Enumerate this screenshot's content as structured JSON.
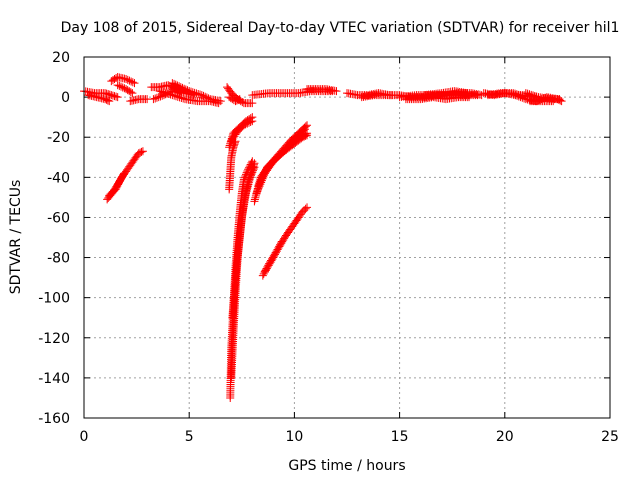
{
  "chart_data": {
    "type": "scatter",
    "title": "Day 108 of 2015, Sidereal Day-to-day VTEC variation (SDTVAR) for receiver hil1",
    "xlabel": "GPS time / hours",
    "ylabel": "SDTVAR / TECUs",
    "xlim": [
      0,
      25
    ],
    "ylim": [
      -160,
      20
    ],
    "xticks": [
      0,
      5,
      10,
      15,
      20,
      25
    ],
    "yticks": [
      20,
      0,
      -20,
      -40,
      -60,
      -80,
      -100,
      -120,
      -140,
      -160
    ],
    "grid": true,
    "grid_style": "dotted",
    "marker": "+",
    "marker_color": "#ff0000",
    "segments": [
      [
        [
          0.0,
          3
        ],
        [
          0.5,
          2
        ],
        [
          1.0,
          2
        ],
        [
          1.3,
          1
        ],
        [
          1.6,
          0
        ]
      ],
      [
        [
          0.2,
          1
        ],
        [
          0.6,
          0
        ],
        [
          1.0,
          -1
        ],
        [
          1.2,
          -2
        ]
      ],
      [
        [
          1.3,
          8
        ],
        [
          1.6,
          10
        ],
        [
          2.0,
          9
        ],
        [
          2.4,
          7
        ]
      ],
      [
        [
          1.6,
          6
        ],
        [
          2.0,
          4
        ],
        [
          2.3,
          2
        ]
      ],
      [
        [
          2.2,
          -2
        ],
        [
          2.6,
          -1
        ],
        [
          3.0,
          -1
        ]
      ],
      [
        [
          3.2,
          5
        ],
        [
          3.6,
          5
        ],
        [
          4.0,
          6
        ],
        [
          4.4,
          4
        ],
        [
          4.8,
          2
        ],
        [
          5.2,
          1
        ]
      ],
      [
        [
          3.3,
          -1
        ],
        [
          3.8,
          1
        ],
        [
          4.2,
          3
        ],
        [
          4.6,
          2
        ]
      ],
      [
        [
          3.6,
          3
        ],
        [
          4.2,
          1
        ],
        [
          4.8,
          -1
        ],
        [
          5.4,
          -2
        ],
        [
          6.0,
          -2
        ],
        [
          6.4,
          -3
        ]
      ],
      [
        [
          4.2,
          7
        ],
        [
          4.6,
          5
        ],
        [
          5.0,
          3
        ],
        [
          5.6,
          1
        ],
        [
          6.0,
          -1
        ],
        [
          6.5,
          -2
        ]
      ],
      [
        [
          6.8,
          5
        ],
        [
          7.0,
          2
        ],
        [
          7.3,
          -1
        ],
        [
          7.6,
          -3
        ],
        [
          8.0,
          -3
        ]
      ],
      [
        [
          6.9,
          0
        ],
        [
          7.2,
          -2
        ],
        [
          7.4,
          -1
        ]
      ],
      [
        [
          1.1,
          -51
        ],
        [
          1.4,
          -47
        ],
        [
          1.8,
          -40
        ],
        [
          2.2,
          -34
        ],
        [
          2.6,
          -28
        ],
        [
          2.8,
          -27
        ]
      ],
      [
        [
          1.2,
          -49
        ],
        [
          1.5,
          -46
        ],
        [
          1.9,
          -38
        ]
      ],
      [
        [
          6.9,
          -25
        ],
        [
          7.1,
          -18
        ],
        [
          7.4,
          -15
        ],
        [
          7.7,
          -12
        ],
        [
          8.0,
          -10
        ]
      ],
      [
        [
          7.0,
          -22
        ],
        [
          7.3,
          -17
        ],
        [
          7.6,
          -14
        ],
        [
          8.0,
          -12
        ]
      ],
      [
        [
          6.9,
          -46
        ],
        [
          6.95,
          -38
        ],
        [
          7.0,
          -30
        ],
        [
          7.1,
          -25
        ],
        [
          7.2,
          -22
        ]
      ],
      [
        [
          6.95,
          -150
        ],
        [
          7.0,
          -125
        ],
        [
          7.1,
          -105
        ],
        [
          7.2,
          -85
        ],
        [
          7.3,
          -70
        ],
        [
          7.4,
          -58
        ],
        [
          7.5,
          -48
        ],
        [
          7.6,
          -41
        ],
        [
          7.8,
          -36
        ],
        [
          8.0,
          -32
        ]
      ],
      [
        [
          7.0,
          -140
        ],
        [
          7.1,
          -118
        ],
        [
          7.2,
          -98
        ],
        [
          7.3,
          -80
        ],
        [
          7.45,
          -65
        ],
        [
          7.6,
          -52
        ],
        [
          7.8,
          -42
        ],
        [
          8.0,
          -36
        ],
        [
          8.1,
          -33
        ]
      ],
      [
        [
          7.05,
          -110
        ],
        [
          7.2,
          -90
        ],
        [
          7.35,
          -75
        ],
        [
          7.5,
          -60
        ],
        [
          7.7,
          -48
        ],
        [
          7.9,
          -40
        ],
        [
          8.1,
          -35
        ]
      ],
      [
        [
          8.1,
          -52
        ],
        [
          8.4,
          -40
        ],
        [
          8.8,
          -34
        ],
        [
          9.3,
          -28
        ],
        [
          9.8,
          -22
        ],
        [
          10.3,
          -17
        ],
        [
          10.6,
          -14
        ]
      ],
      [
        [
          8.2,
          -48
        ],
        [
          8.6,
          -38
        ],
        [
          9.0,
          -32
        ],
        [
          9.5,
          -27
        ],
        [
          10.0,
          -21
        ],
        [
          10.5,
          -16
        ]
      ],
      [
        [
          8.3,
          -44
        ],
        [
          8.7,
          -35
        ],
        [
          9.2,
          -30
        ],
        [
          9.7,
          -25
        ],
        [
          10.2,
          -20
        ],
        [
          10.6,
          -18
        ]
      ],
      [
        [
          8.4,
          -40
        ],
        [
          8.9,
          -33
        ],
        [
          9.4,
          -28
        ],
        [
          9.9,
          -24
        ],
        [
          10.4,
          -20
        ],
        [
          10.6,
          -19
        ]
      ],
      [
        [
          8.5,
          -89
        ],
        [
          8.8,
          -83
        ],
        [
          9.2,
          -76
        ],
        [
          9.6,
          -69
        ],
        [
          10.0,
          -63
        ],
        [
          10.4,
          -57
        ],
        [
          10.6,
          -55
        ]
      ],
      [
        [
          8.6,
          -87
        ],
        [
          9.0,
          -80
        ],
        [
          9.4,
          -72
        ]
      ],
      [
        [
          8.0,
          1
        ],
        [
          8.8,
          2
        ],
        [
          9.5,
          2
        ],
        [
          10.2,
          2
        ],
        [
          10.8,
          3
        ],
        [
          11.4,
          3
        ],
        [
          11.8,
          3
        ]
      ],
      [
        [
          10.6,
          4
        ],
        [
          11.0,
          4
        ],
        [
          11.5,
          4
        ],
        [
          12.0,
          3
        ]
      ],
      [
        [
          12.5,
          2
        ],
        [
          13.0,
          1
        ],
        [
          13.5,
          1
        ],
        [
          14.0,
          2
        ],
        [
          14.5,
          1
        ],
        [
          15.0,
          1
        ],
        [
          15.5,
          0
        ]
      ],
      [
        [
          13.2,
          0
        ],
        [
          13.8,
          1
        ],
        [
          14.6,
          1
        ]
      ],
      [
        [
          15.0,
          0
        ],
        [
          15.8,
          1
        ],
        [
          16.5,
          1
        ],
        [
          17.2,
          1
        ],
        [
          17.8,
          2
        ],
        [
          18.4,
          2
        ],
        [
          18.9,
          1
        ]
      ],
      [
        [
          15.3,
          -1
        ],
        [
          16.0,
          -1
        ],
        [
          16.6,
          0
        ],
        [
          17.2,
          -1
        ],
        [
          17.8,
          0
        ],
        [
          18.3,
          0
        ]
      ],
      [
        [
          15.5,
          0
        ],
        [
          16.2,
          0
        ],
        [
          16.8,
          1
        ],
        [
          17.4,
          1
        ],
        [
          18.0,
          1
        ],
        [
          18.7,
          1
        ]
      ],
      [
        [
          16.2,
          1
        ],
        [
          17.0,
          2
        ],
        [
          17.6,
          3
        ],
        [
          18.2,
          2
        ]
      ],
      [
        [
          19.0,
          2
        ],
        [
          19.5,
          1
        ],
        [
          20.0,
          2
        ],
        [
          20.5,
          1
        ],
        [
          21.0,
          1
        ],
        [
          21.5,
          0
        ]
      ],
      [
        [
          19.2,
          1
        ],
        [
          19.8,
          2
        ],
        [
          20.4,
          2
        ],
        [
          21.0,
          0
        ]
      ],
      [
        [
          20.5,
          1
        ],
        [
          21.0,
          -1
        ],
        [
          21.5,
          -2
        ],
        [
          22.0,
          0
        ],
        [
          22.5,
          -1
        ],
        [
          22.7,
          -2
        ]
      ],
      [
        [
          21.0,
          2
        ],
        [
          21.6,
          0
        ],
        [
          22.2,
          -1
        ],
        [
          22.6,
          -1
        ]
      ],
      [
        [
          21.2,
          -2
        ],
        [
          21.8,
          -2
        ],
        [
          22.3,
          -2
        ]
      ]
    ]
  }
}
